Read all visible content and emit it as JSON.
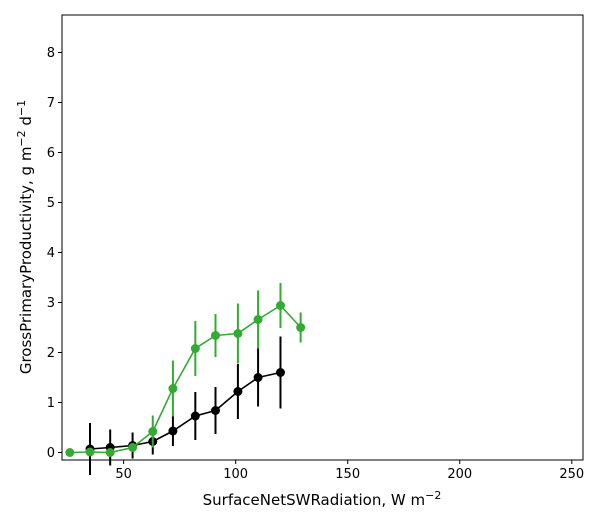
{
  "chart_data": {
    "type": "line",
    "xlabel_main": "SurfaceNetSWRadiation,  W m",
    "xlabel_sup": "−2",
    "ylabel_main": "GrossPrimaryProductivity,  g m",
    "ylabel_sup1": "−2",
    "ylabel_mid": " d",
    "ylabel_sup2": "−1",
    "xlim": [
      22.5,
      255
    ],
    "ylim": [
      -0.15,
      8.75
    ],
    "xticks": [
      50,
      100,
      150,
      200,
      250
    ],
    "yticks": [
      0,
      1,
      2,
      3,
      4,
      5,
      6,
      7,
      8
    ],
    "grid": false,
    "series": [
      {
        "color": "#000000",
        "points": [
          {
            "x": 35,
            "y": 0.07,
            "err": 0.52
          },
          {
            "x": 44,
            "y": 0.1,
            "err": 0.36
          },
          {
            "x": 54,
            "y": 0.14,
            "err": 0.26
          },
          {
            "x": 63,
            "y": 0.22,
            "err": 0.26
          },
          {
            "x": 72,
            "y": 0.43,
            "err": 0.3
          },
          {
            "x": 82,
            "y": 0.73,
            "err": 0.48
          },
          {
            "x": 91,
            "y": 0.84,
            "err": 0.47
          },
          {
            "x": 101,
            "y": 1.22,
            "err": 0.55
          },
          {
            "x": 110,
            "y": 1.5,
            "err": 0.58
          },
          {
            "x": 120,
            "y": 1.6,
            "err": 0.72
          }
        ]
      },
      {
        "color": "#33aa33",
        "points": [
          {
            "x": 26,
            "y": 0.0,
            "err": 0.0
          },
          {
            "x": 35,
            "y": 0.01,
            "err": 0.0
          },
          {
            "x": 44,
            "y": 0.0,
            "err": 0.0
          },
          {
            "x": 54,
            "y": 0.1,
            "err": 0.0
          },
          {
            "x": 63,
            "y": 0.42,
            "err": 0.32
          },
          {
            "x": 72,
            "y": 1.28,
            "err": 0.56
          },
          {
            "x": 82,
            "y": 2.08,
            "err": 0.55
          },
          {
            "x": 91,
            "y": 2.34,
            "err": 0.43
          },
          {
            "x": 101,
            "y": 2.38,
            "err": 0.6
          },
          {
            "x": 110,
            "y": 2.66,
            "err": 0.58
          },
          {
            "x": 120,
            "y": 2.94,
            "err": 0.45
          },
          {
            "x": 129,
            "y": 2.5,
            "err": 0.3
          }
        ]
      }
    ]
  }
}
